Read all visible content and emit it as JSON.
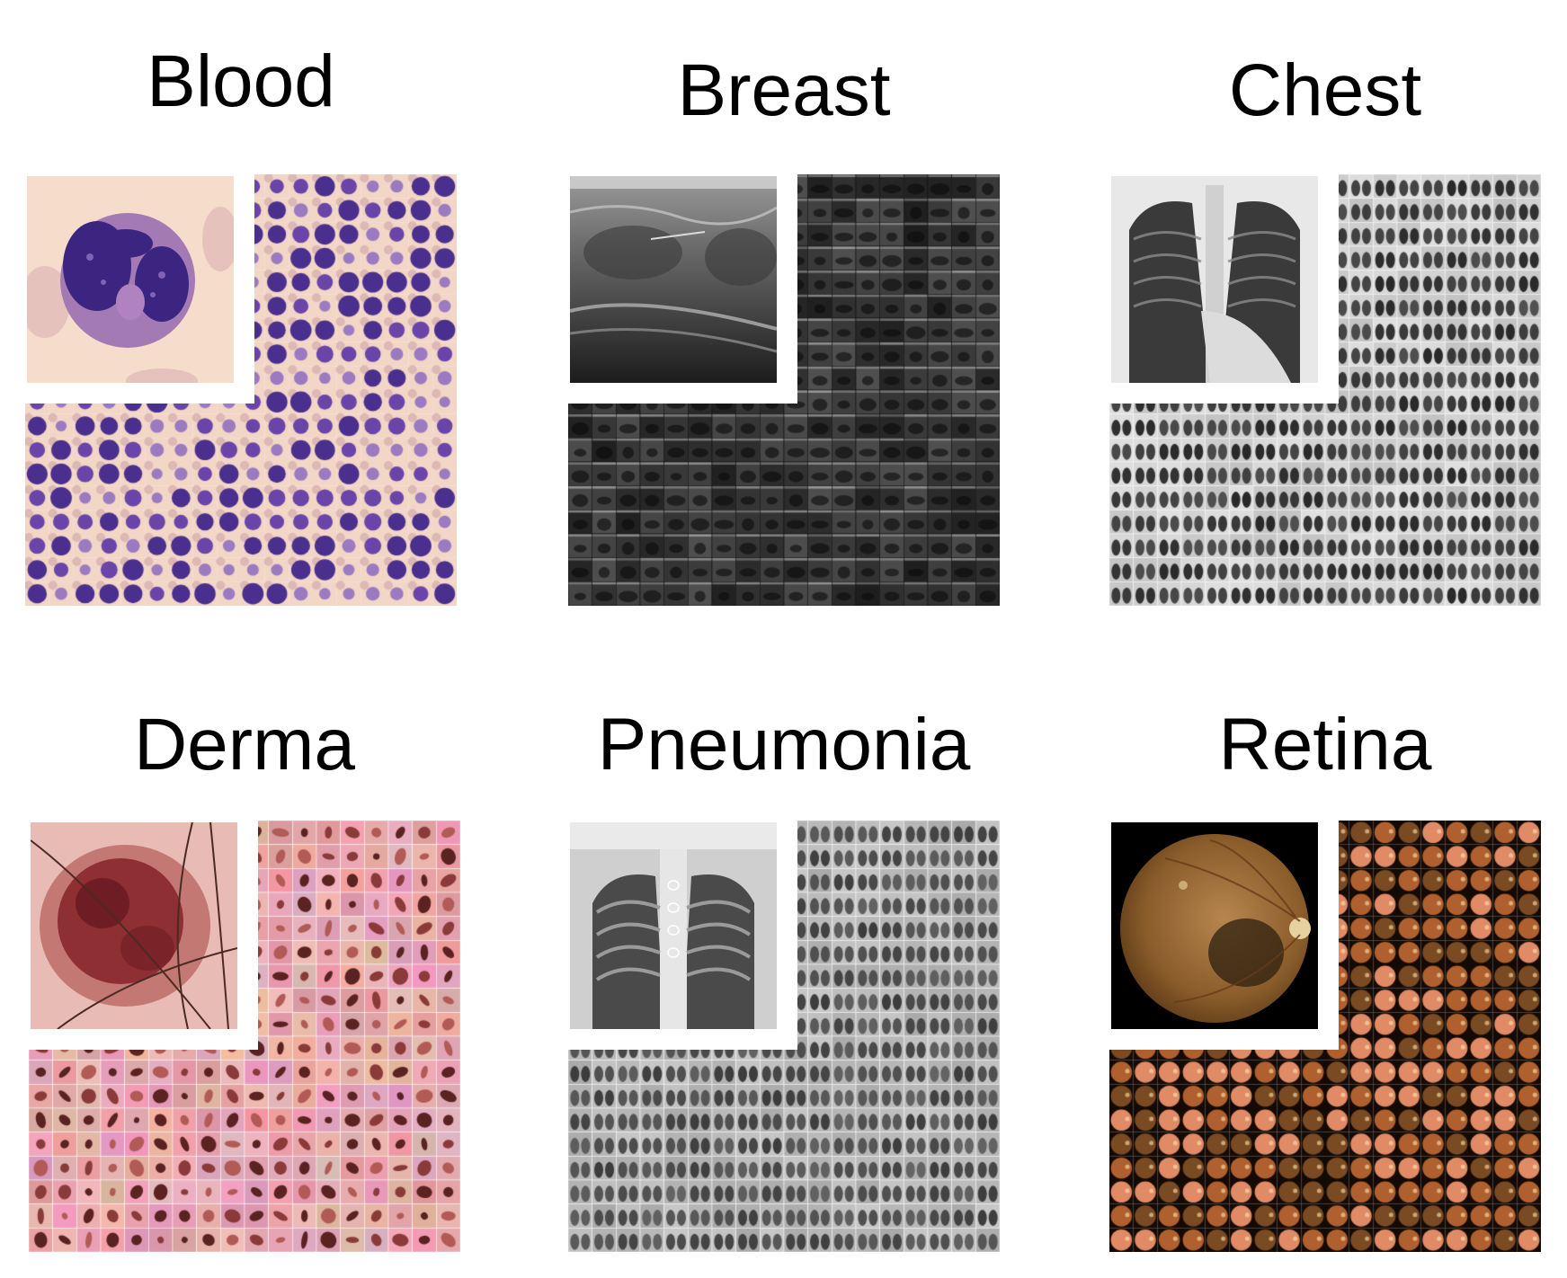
{
  "panels": [
    {
      "id": "blood",
      "title": "Blood",
      "style": "blood",
      "colors": {
        "bg": "#f3d9c9",
        "cell": "#5a3a98",
        "cell2": "#8a5cb8",
        "rbc": "#d9b6ac"
      }
    },
    {
      "id": "breast",
      "title": "Breast",
      "style": "ultrasound",
      "colors": {
        "bg": "#2a2a2a",
        "light": "#a8a8a8"
      }
    },
    {
      "id": "chest",
      "title": "Chest",
      "style": "xray",
      "colors": {
        "bg": "#d8d8d8",
        "dark": "#2b2b2b"
      }
    },
    {
      "id": "derma",
      "title": "Derma",
      "style": "derma",
      "colors": {
        "bg": "#e5a8aa",
        "lesion": "#8b2b2e"
      }
    },
    {
      "id": "pneumonia",
      "title": "Pneumonia",
      "style": "xray2",
      "colors": {
        "bg": "#9a9a9a",
        "dark": "#333333"
      }
    },
    {
      "id": "retina",
      "title": "Retina",
      "style": "retina",
      "colors": {
        "bg": "#1a100a",
        "fundus": "#c9724e",
        "fundus2": "#e79a6c"
      }
    }
  ]
}
